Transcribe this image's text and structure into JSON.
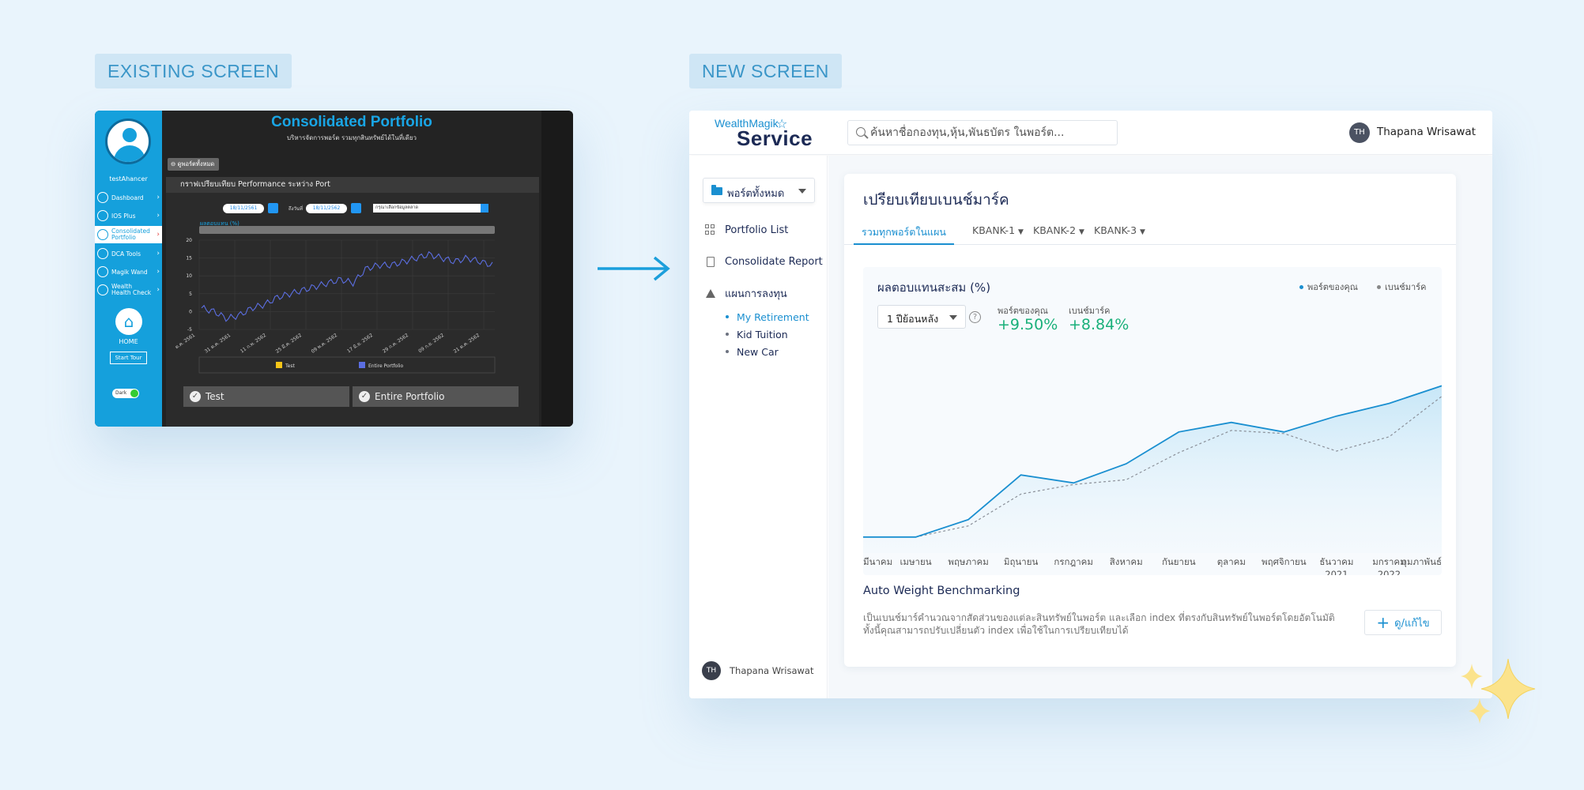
{
  "labels": {
    "existing": "EXISTING SCREEN",
    "new": "NEW SCREEN"
  },
  "old_screen": {
    "username": "testAhancer",
    "menu": [
      "Dashboard",
      "IOS Plus",
      "Consolidated Portfolio",
      "DCA Tools",
      "Magik Wand",
      "Wealth Health Check"
    ],
    "home_label": "HOME",
    "start_tour": "Start Tour",
    "dark_toggle": "Dark",
    "title": "Consolidated Portfolio",
    "subtitle": "บริหารจัดการพอร์ต รวมทุกสินทรัพย์ได้ในที่เดียว",
    "back_button": "ดูพอร์ตทั้งหมด",
    "panel_title": "กราฟเปรียบเทียบ Performance ระหว่าง Port",
    "date_from": "18/11/2561",
    "to_label": "ถึงวันที่",
    "date_to": "18/11/2562",
    "select_placeholder": "กรุณาเลือกข้อมูลตลาด",
    "chart_label": "ผลตอบแทน (%)",
    "chart_yticks": [
      "20",
      "15",
      "10",
      "5",
      "0",
      "-5"
    ],
    "chart_xticks": [
      "ต.ค. 2561",
      "31 ต.ค. 2561",
      "11 ก.พ. 2562",
      "25 มี.ค. 2562",
      "09 พ.ค. 2562",
      "17 มิ.ย. 2562",
      "29 ก.ค. 2562",
      "09 ก.ย. 2562",
      "21 ต.ค. 2562"
    ],
    "legend": [
      "Test",
      "Entire Portfolio"
    ],
    "buttons": [
      "Test",
      "Entire Portfolio"
    ]
  },
  "new_screen": {
    "logo_top": "WealthMagik",
    "logo_bottom": "Service",
    "search_placeholder": "ค้นหาชื่อกองทุน,หุ้น,พันธบัตร ในพอร์ต...",
    "user_initials": "TH",
    "user_name": "Thapana Wrisawat",
    "portfolio_select": "พอร์ตทั้งหมด",
    "sidebar": {
      "items": [
        "Portfolio List",
        "Consolidate Report",
        "แผนการลงทุน"
      ],
      "sub_items": [
        "My Retirement",
        "Kid Tuition",
        "New Car"
      ]
    },
    "card_title": "เปรียบเทียบเบนช์มาร์ค",
    "tabs": [
      "รวมทุกพอร์ตในแผน",
      "KBANK-1",
      "KBANK-2",
      "KBANK-3"
    ],
    "chart_title": "ผลตอบแทนสะสม (%)",
    "legend": [
      "พอร์ตของคุณ",
      "เบนช์มาร์ค"
    ],
    "range_select": "1 ปีย้อนหลัง",
    "stats": {
      "portfolio_label": "พอร์ตของคุณ",
      "portfolio_value": "+9.50%",
      "benchmark_label": "เบนช์มาร์ค",
      "benchmark_value": "+8.84%"
    },
    "auto_title": "Auto Weight Benchmarking",
    "auto_desc_1": "เป็นเบนช์มาร์คำนวณจากสัดส่วนของแต่ละสินทรัพย์ในพอร์ต และเลือก index ที่ตรงกับสินทรัพย์ในพอร์ตโดยอัตโนมัติ",
    "auto_desc_2": "ทั้งนี้คุณสามารถปรับเปลี่ยนตัว index เพื่อใช้ในการเปรียบเทียบได้",
    "edit_button": "ดู/แก้ไข"
  },
  "colors": {
    "accent": "#1a8fd0",
    "positive": "#1ab07a",
    "old_sidebar": "#15a0dc"
  },
  "chart_data": {
    "type": "area",
    "title": "ผลตอบแทนสะสม (%)",
    "categories": [
      "มีนาคม",
      "เมษายน",
      "พฤษภาคม",
      "มิถุนายน",
      "กรกฎาคม",
      "สิงหาคม",
      "กันยายน",
      "ตุลาคม",
      "พฤศจิกายน",
      "ธันวาคม",
      "มกราคม",
      "กุมภาพันธ์"
    ],
    "category_years": [
      "",
      "",
      "",
      "",
      "",
      "",
      "",
      "",
      "",
      "2021",
      "2022",
      ""
    ],
    "series": [
      {
        "name": "พอร์ตของคุณ",
        "values": [
          0.0,
          0.0,
          1.1,
          3.9,
          3.4,
          4.6,
          6.6,
          7.2,
          6.6,
          7.6,
          8.4,
          9.5
        ]
      },
      {
        "name": "เบนช์มาร์ค",
        "values": [
          0.0,
          0.0,
          0.7,
          2.7,
          3.3,
          3.6,
          5.3,
          6.7,
          6.5,
          5.4,
          6.3,
          8.84
        ]
      }
    ],
    "ylim": [
      -1,
      12
    ],
    "grid": false,
    "legend_position": "top-right"
  }
}
